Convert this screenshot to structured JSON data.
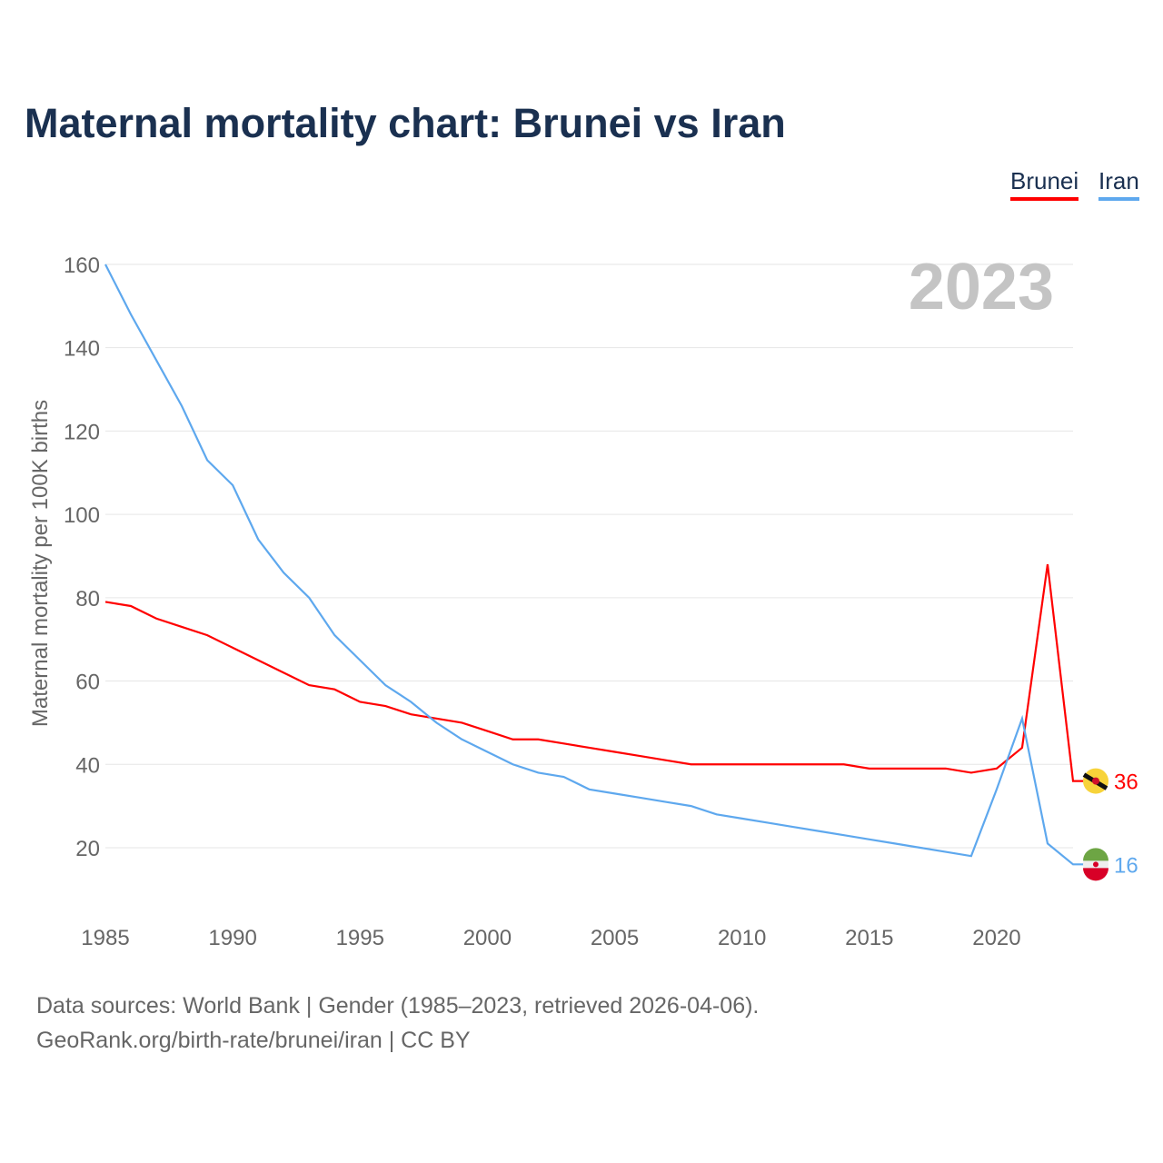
{
  "title": "Maternal mortality chart: Brunei vs Iran",
  "footer": {
    "line1": "Data sources: World Bank | Gender (1985–2023, retrieved 2026-04-06).",
    "line2": "GeoRank.org/birth-rate/brunei/iran | CC BY"
  },
  "chart_data": {
    "type": "line",
    "title": "Maternal mortality chart: Brunei vs Iran",
    "ylabel": "Maternal mortality per 100K births",
    "xlabel": "",
    "year_label": "2023",
    "xlim": [
      1985,
      2023
    ],
    "ylim": [
      0,
      160
    ],
    "xticks": [
      1985,
      1990,
      1995,
      2000,
      2005,
      2010,
      2015,
      2020
    ],
    "yticks": [
      20,
      40,
      60,
      80,
      100,
      120,
      140,
      160
    ],
    "legend_position": "top-right",
    "x": [
      1985,
      1986,
      1987,
      1988,
      1989,
      1990,
      1991,
      1992,
      1993,
      1994,
      1995,
      1996,
      1997,
      1998,
      1999,
      2000,
      2001,
      2002,
      2003,
      2004,
      2005,
      2006,
      2007,
      2008,
      2009,
      2010,
      2011,
      2012,
      2013,
      2014,
      2015,
      2016,
      2017,
      2018,
      2019,
      2020,
      2021,
      2022,
      2023
    ],
    "series": [
      {
        "name": "Brunei",
        "color": "#ff0000",
        "end_label": "36",
        "values": [
          79,
          78,
          75,
          73,
          71,
          68,
          65,
          62,
          59,
          58,
          55,
          54,
          52,
          51,
          50,
          48,
          46,
          46,
          45,
          44,
          43,
          42,
          41,
          40,
          40,
          40,
          40,
          40,
          40,
          40,
          39,
          39,
          39,
          39,
          38,
          39,
          44,
          88,
          36
        ]
      },
      {
        "name": "Iran",
        "color": "#5ea8ee",
        "end_label": "16",
        "values": [
          160,
          148,
          137,
          126,
          113,
          107,
          94,
          86,
          80,
          71,
          65,
          59,
          55,
          50,
          46,
          43,
          40,
          38,
          37,
          34,
          33,
          32,
          31,
          30,
          28,
          27,
          26,
          25,
          24,
          23,
          22,
          21,
          20,
          19,
          18,
          34,
          51,
          21,
          16
        ]
      }
    ]
  }
}
